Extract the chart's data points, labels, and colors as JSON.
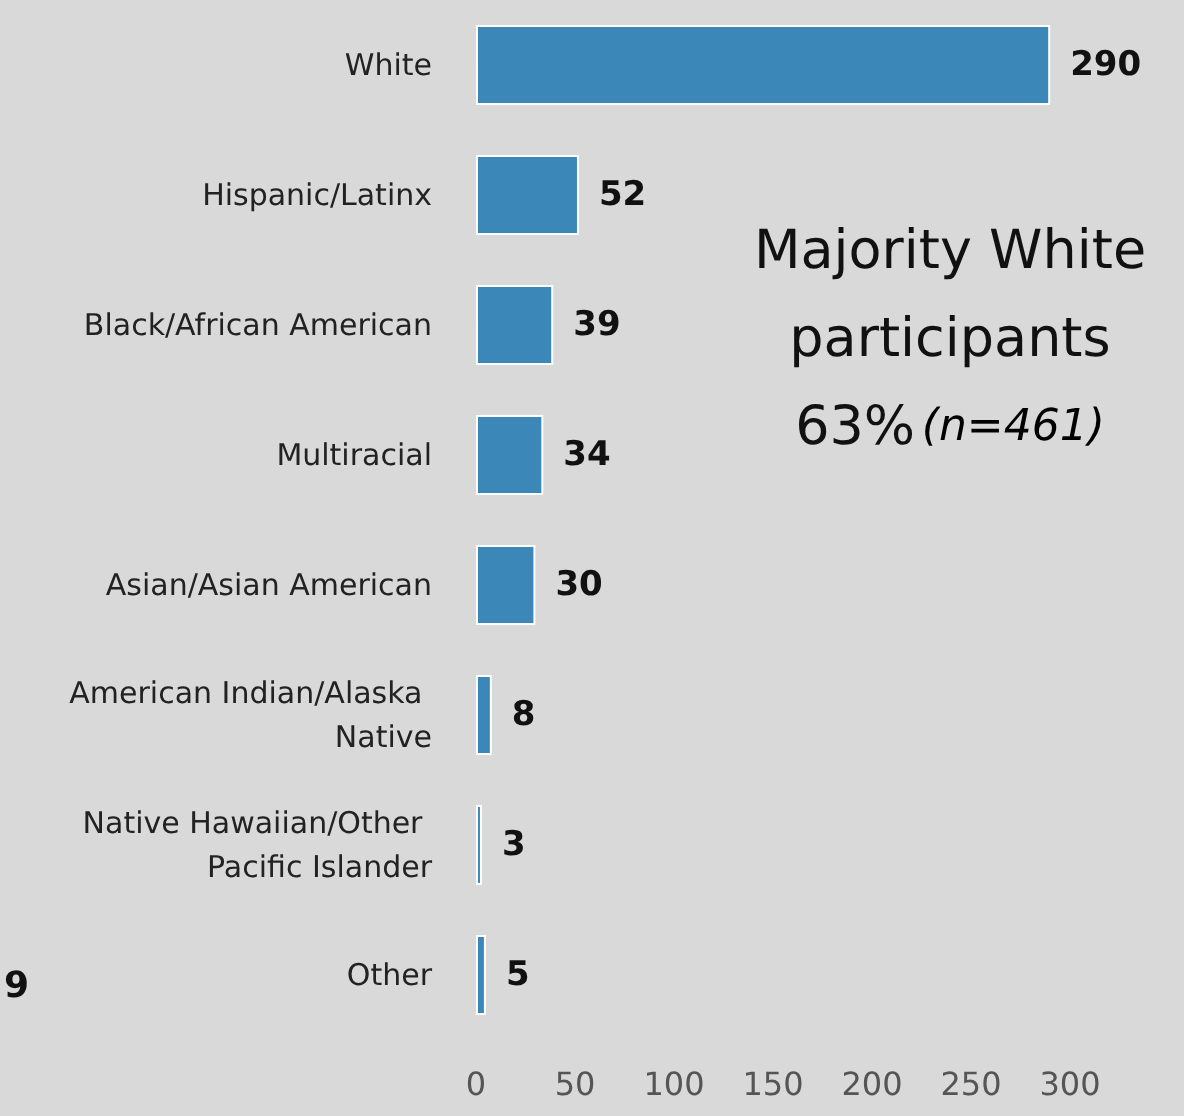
{
  "chart_data": {
    "type": "bar",
    "orientation": "horizontal",
    "categories": [
      "White",
      "Hispanic/Latinx",
      "Black/African American",
      "Multiracial",
      "Asian/Asian American",
      "American Indian/Alaska Native",
      "Native Hawaiian/Other Pacific Islander",
      "Other"
    ],
    "values": [
      290,
      52,
      39,
      34,
      30,
      8,
      3,
      5
    ],
    "color": "#3a87b8",
    "data_labels": true,
    "grid": false,
    "xlim": [
      0,
      300
    ],
    "xticks": [
      0,
      50,
      100,
      150,
      200,
      250,
      300
    ],
    "annotations": [
      "Majority White",
      "participants",
      "63%",
      "(n=461)",
      "9"
    ]
  }
}
